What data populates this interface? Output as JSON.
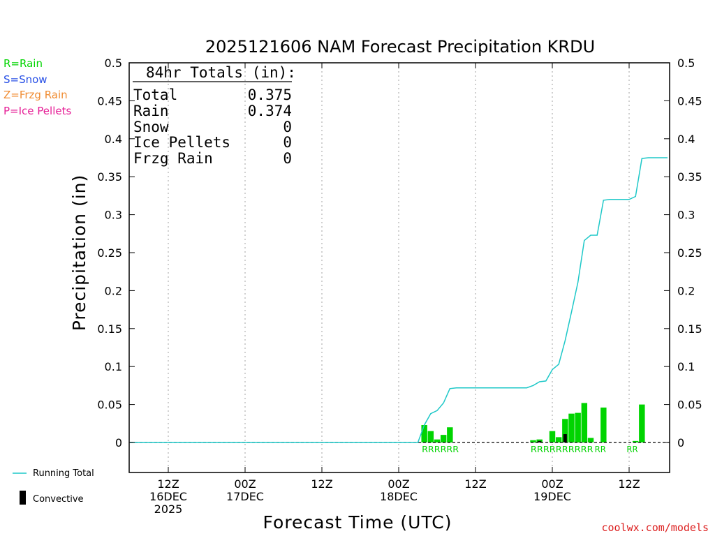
{
  "colors": {
    "rain": "#00d400",
    "snow": "#2850e6",
    "frzg": "#f08c32",
    "ice": "#e61e96",
    "running_total": "#1ec8c8",
    "convective": "#000000",
    "grid": "#a0a0a0",
    "credit": "#dc1e1e"
  },
  "chart_data": {
    "type": "bar",
    "title": "2025121606 NAM Forecast Precipitation KRDU",
    "xlabel": "Forecast Time (UTC)",
    "ylabel": "Precipitation (in)",
    "ylim": [
      -0.04,
      0.5
    ],
    "xlim_hours": [
      -3,
      84
    ],
    "yticks": [
      "0.5",
      "0.45",
      "0.4",
      "0.35",
      "0.3",
      "0.25",
      "0.2",
      "0.15",
      "0.1",
      "0.05",
      "0"
    ],
    "ytick_values": [
      0.5,
      0.45,
      0.4,
      0.35,
      0.3,
      0.25,
      0.2,
      0.15,
      0.1,
      0.05,
      0
    ],
    "xticks": [
      {
        "hour": 6,
        "line1": "12Z",
        "line2": "16DEC",
        "line3": "2025"
      },
      {
        "hour": 18,
        "line1": "00Z",
        "line2": "17DEC",
        "line3": ""
      },
      {
        "hour": 30,
        "line1": "12Z",
        "line2": "",
        "line3": ""
      },
      {
        "hour": 42,
        "line1": "00Z",
        "line2": "18DEC",
        "line3": ""
      },
      {
        "hour": 54,
        "line1": "12Z",
        "line2": "",
        "line3": ""
      },
      {
        "hour": 66,
        "line1": "00Z",
        "line2": "19DEC",
        "line3": ""
      },
      {
        "hour": 78,
        "line1": "12Z",
        "line2": "",
        "line3": ""
      }
    ],
    "gridlines": true,
    "legend_position": "bottom-left",
    "totals": {
      "header": "84hr Totals (in):",
      "rows": [
        {
          "label": "Total",
          "value": "0.375"
        },
        {
          "label": "Rain",
          "value": "0.374"
        },
        {
          "label": "Snow",
          "value": "0"
        },
        {
          "label": "Ice Pellets",
          "value": "0"
        },
        {
          "label": "Frzg Rain",
          "value": "0"
        }
      ]
    },
    "ptype_legend": [
      "R=Rain",
      "S=Snow",
      "Z=Frzg Rain",
      "P=Ice Pellets"
    ],
    "series_legend": {
      "running_total": "Running Total",
      "convective": "Convective"
    },
    "bars": [
      {
        "hour": 46,
        "value": 0.023,
        "conv": 0.0
      },
      {
        "hour": 47,
        "value": 0.015,
        "conv": 0.0
      },
      {
        "hour": 48,
        "value": 0.004,
        "conv": 0.0
      },
      {
        "hour": 49,
        "value": 0.01,
        "conv": 0.0
      },
      {
        "hour": 50,
        "value": 0.02,
        "conv": 0.0
      },
      {
        "hour": 63,
        "value": 0.003,
        "conv": 0.0
      },
      {
        "hour": 64,
        "value": 0.004,
        "conv": 0.002
      },
      {
        "hour": 66,
        "value": 0.015,
        "conv": 0.0
      },
      {
        "hour": 67,
        "value": 0.007,
        "conv": 0.0
      },
      {
        "hour": 68,
        "value": 0.031,
        "conv": 0.011
      },
      {
        "hour": 69,
        "value": 0.038,
        "conv": 0.0
      },
      {
        "hour": 70,
        "value": 0.039,
        "conv": 0.0
      },
      {
        "hour": 71,
        "value": 0.052,
        "conv": 0.0
      },
      {
        "hour": 72,
        "value": 0.006,
        "conv": 0.0
      },
      {
        "hour": 74,
        "value": 0.046,
        "conv": 0.0
      },
      {
        "hour": 79,
        "value": 0.002,
        "conv": 0.0
      },
      {
        "hour": 80,
        "value": 0.05,
        "conv": 0.0
      }
    ],
    "running_total": {
      "x": [
        0,
        45,
        46,
        47,
        48,
        49,
        50,
        51,
        60,
        61,
        62,
        63,
        64,
        65,
        66,
        67,
        68,
        69,
        70,
        71,
        72,
        73,
        74,
        75,
        77,
        78,
        79,
        80,
        81,
        84
      ],
      "y": [
        0,
        0,
        0.023,
        0.038,
        0.042,
        0.052,
        0.071,
        0.072,
        0.072,
        0.072,
        0.072,
        0.075,
        0.08,
        0.081,
        0.096,
        0.103,
        0.134,
        0.172,
        0.211,
        0.266,
        0.273,
        0.273,
        0.319,
        0.32,
        0.32,
        0.32,
        0.324,
        0.374,
        0.375,
        0.375
      ]
    },
    "ptype_labels": [
      {
        "start_hour": 46,
        "text": "RRRRRR"
      },
      {
        "start_hour": 63,
        "text": "RRRRRRRRRR"
      },
      {
        "start_hour": 73,
        "text": "RR"
      },
      {
        "start_hour": 78,
        "text": "RR"
      }
    ]
  },
  "credit": "coolwx.com/models"
}
